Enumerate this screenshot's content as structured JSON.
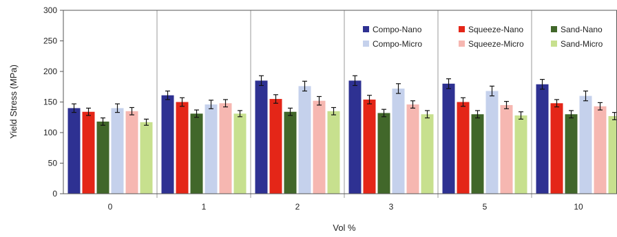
{
  "chart_data": {
    "type": "bar",
    "title": "",
    "xlabel": "Vol %",
    "ylabel": "Yield Stress (MPa)",
    "ylim": [
      0,
      300
    ],
    "yticks": [
      0,
      50,
      100,
      150,
      200,
      250,
      300
    ],
    "grid": "vertical separators between category groups",
    "legend_position": "top-right",
    "categories": [
      "0",
      "1",
      "2",
      "3",
      "5",
      "10"
    ],
    "series": [
      {
        "name": "Compo-Nano",
        "color": "#2e3192",
        "values": [
          140,
          161,
          185,
          185,
          180,
          179
        ],
        "errors": [
          7,
          7,
          8,
          8,
          8,
          8
        ]
      },
      {
        "name": "Squeeze-Nano",
        "color": "#e42618",
        "values": [
          134,
          150,
          155,
          154,
          150,
          148
        ],
        "errors": [
          6,
          7,
          7,
          7,
          7,
          6
        ]
      },
      {
        "name": "Sand-Nano",
        "color": "#41672a",
        "values": [
          118,
          131,
          134,
          132,
          130,
          130
        ],
        "errors": [
          6,
          6,
          6,
          6,
          6,
          6
        ]
      },
      {
        "name": "Compo-Micro",
        "color": "#c5d1ec",
        "values": [
          140,
          146,
          176,
          172,
          168,
          160
        ],
        "errors": [
          7,
          7,
          8,
          8,
          8,
          8
        ]
      },
      {
        "name": "Squeeze-Micro",
        "color": "#f6b7b1",
        "values": [
          135,
          148,
          152,
          146,
          145,
          143
        ],
        "errors": [
          6,
          6,
          7,
          6,
          6,
          6
        ]
      },
      {
        "name": "Sand-Micro",
        "color": "#c7e08e",
        "values": [
          117,
          131,
          135,
          130,
          128,
          127
        ],
        "errors": [
          5,
          5,
          6,
          6,
          6,
          6
        ]
      }
    ]
  }
}
